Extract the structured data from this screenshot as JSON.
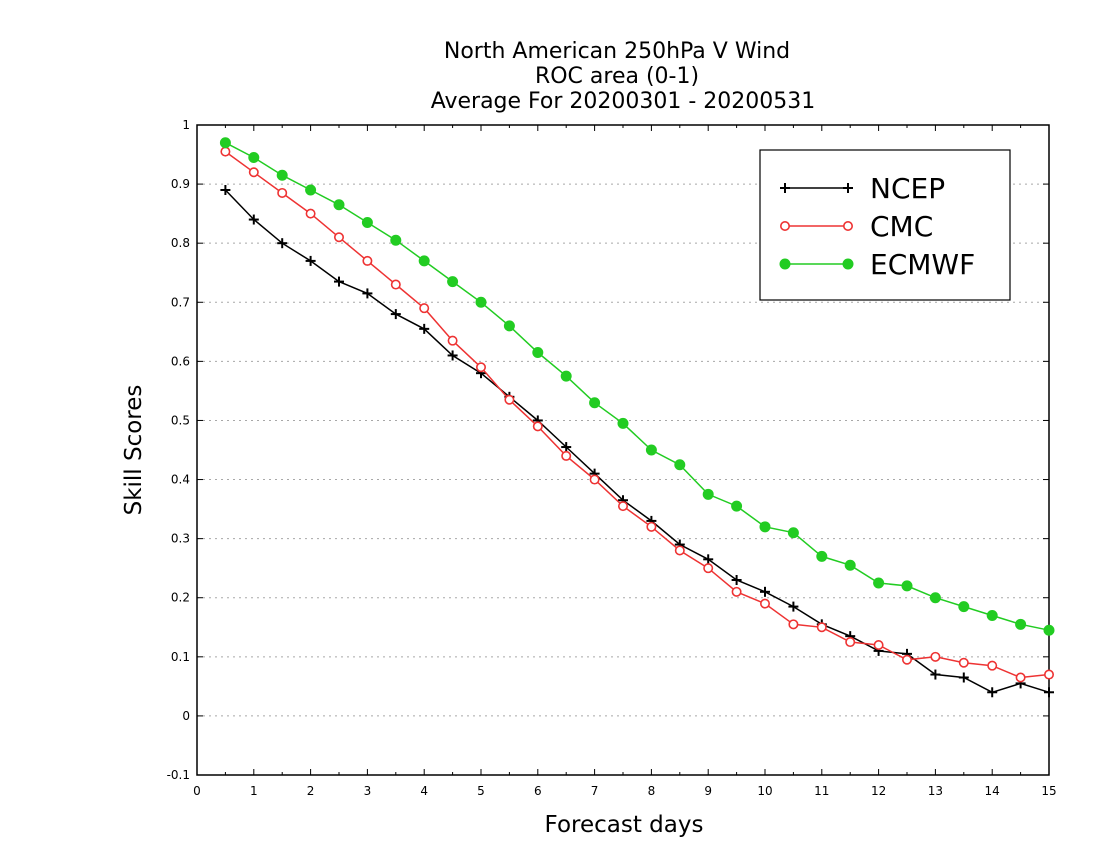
{
  "chart_data": {
    "type": "line",
    "title": [
      "North American 250hPa V Wind",
      "ROC area (0-1)",
      "Average For 20200301 - 20200531"
    ],
    "xlabel": "Forecast days",
    "ylabel": "Skill Scores",
    "xlim": [
      0,
      15
    ],
    "ylim": [
      -0.1,
      1
    ],
    "xticks": [
      "0",
      "1",
      "2",
      "3",
      "4",
      "5",
      "6",
      "7",
      "8",
      "9",
      "10",
      "11",
      "12",
      "13",
      "14",
      "15"
    ],
    "yticks": [
      "-0.1",
      "0",
      "0.1",
      "0.2",
      "0.3",
      "0.4",
      "0.5",
      "0.6",
      "0.7",
      "0.8",
      "0.9",
      "1"
    ],
    "grid": "horizontal dotted",
    "legend_position": "top-right",
    "x": [
      0.5,
      1,
      1.5,
      2,
      2.5,
      3,
      3.5,
      4,
      4.5,
      5,
      5.5,
      6,
      6.5,
      7,
      7.5,
      8,
      8.5,
      9,
      9.5,
      10,
      10.5,
      11,
      11.5,
      12,
      12.5,
      13,
      13.5,
      14,
      14.5,
      15
    ],
    "series": [
      {
        "name": "NCEP",
        "color": "#000000",
        "marker": "plus",
        "values": [
          0.89,
          0.84,
          0.8,
          0.77,
          0.735,
          0.715,
          0.68,
          0.655,
          0.61,
          0.58,
          0.54,
          0.5,
          0.455,
          0.41,
          0.365,
          0.33,
          0.29,
          0.265,
          0.23,
          0.21,
          0.185,
          0.155,
          0.135,
          0.11,
          0.105,
          0.07,
          0.065,
          0.04,
          0.055,
          0.04
        ]
      },
      {
        "name": "CMC",
        "color": "#ee3333",
        "marker": "open-circle",
        "values": [
          0.955,
          0.92,
          0.885,
          0.85,
          0.81,
          0.77,
          0.73,
          0.69,
          0.635,
          0.59,
          0.535,
          0.49,
          0.44,
          0.4,
          0.355,
          0.32,
          0.28,
          0.25,
          0.21,
          0.19,
          0.155,
          0.15,
          0.125,
          0.12,
          0.095,
          0.1,
          0.09,
          0.085,
          0.065,
          0.07
        ]
      },
      {
        "name": "ECMWF",
        "color": "#22cc22",
        "marker": "filled-circle",
        "values": [
          0.97,
          0.945,
          0.915,
          0.89,
          0.865,
          0.835,
          0.805,
          0.77,
          0.735,
          0.7,
          0.66,
          0.615,
          0.575,
          0.53,
          0.495,
          0.45,
          0.425,
          0.375,
          0.355,
          0.32,
          0.31,
          0.27,
          0.255,
          0.225,
          0.22,
          0.2,
          0.185,
          0.17,
          0.155,
          0.145
        ]
      }
    ]
  }
}
